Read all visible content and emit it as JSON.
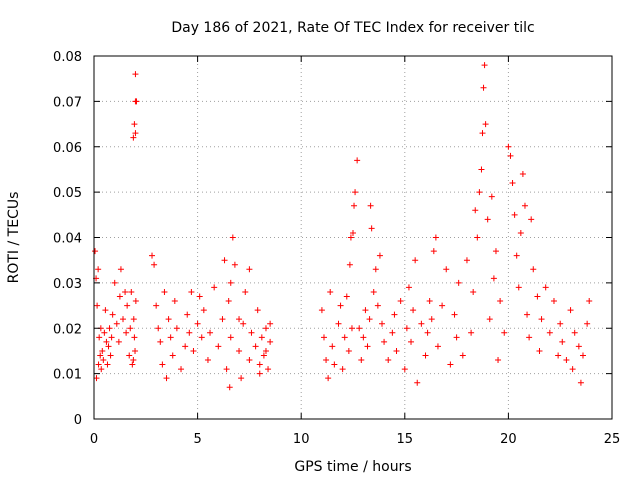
{
  "chart_data": {
    "type": "scatter",
    "title": "Day 186 of 2021, Rate Of TEC Index for receiver tilc",
    "xlabel": "GPS time / hours",
    "ylabel": "ROTI / TECUs",
    "xlim": [
      0,
      25
    ],
    "ylim": [
      0,
      0.08
    ],
    "xticks": [
      0,
      5,
      10,
      15,
      20,
      25
    ],
    "xtick_labels": [
      "0",
      "5",
      "10",
      "15",
      "20",
      "25"
    ],
    "yticks": [
      0,
      0.01,
      0.02,
      0.03,
      0.04,
      0.05,
      0.06,
      0.07,
      0.08
    ],
    "ytick_labels": [
      "0",
      "0.01",
      "0.02",
      "0.03",
      "0.04",
      "0.05",
      "0.06",
      "0.07",
      "0.08"
    ],
    "grid": true,
    "legend": "none",
    "marker": "+",
    "color": "#ff0000",
    "series": [
      {
        "x": [
          0.05,
          0.1,
          0.12,
          0.15,
          0.2,
          0.22,
          0.25,
          0.3,
          0.33,
          0.35,
          0.4,
          0.45,
          0.5,
          0.55,
          0.6,
          0.65,
          0.7,
          0.75,
          0.8,
          0.85,
          0.9,
          1.0,
          1.1,
          1.2,
          1.25,
          1.3,
          1.4,
          1.5,
          1.55,
          1.6,
          1.7,
          1.75,
          1.8,
          1.85,
          1.9,
          1.95,
          2.0,
          2.0,
          2.0,
          2.05,
          1.9,
          1.92,
          1.95,
          1.98,
          2.02,
          2.8,
          2.9,
          3.0,
          3.1,
          3.2,
          3.3,
          3.4,
          3.5,
          3.6,
          3.7,
          3.8,
          3.9,
          4.0,
          4.2,
          4.4,
          4.5,
          4.6,
          4.7,
          4.8,
          5.0,
          5.1,
          5.2,
          5.3,
          5.5,
          5.6,
          5.8,
          6.0,
          6.2,
          6.3,
          6.4,
          6.5,
          6.6,
          6.7,
          6.8,
          7.0,
          7.1,
          7.2,
          7.3,
          7.5,
          7.6,
          7.8,
          7.9,
          8.0,
          8.1,
          8.2,
          8.3,
          8.4,
          8.5,
          6.55,
          6.6,
          7.0,
          7.5,
          8.0,
          8.3,
          8.5,
          11.0,
          11.1,
          11.2,
          11.3,
          11.4,
          11.5,
          11.6,
          11.8,
          11.9,
          12.0,
          12.1,
          12.2,
          12.3,
          12.35,
          12.4,
          12.45,
          12.5,
          12.55,
          12.6,
          12.7,
          12.8,
          12.9,
          13.0,
          13.1,
          13.2,
          13.3,
          13.35,
          13.4,
          13.5,
          13.6,
          13.7,
          13.8,
          13.9,
          14.0,
          14.2,
          14.4,
          14.5,
          14.6,
          14.8,
          15.0,
          15.1,
          15.2,
          15.3,
          15.4,
          15.5,
          15.6,
          15.8,
          16.0,
          16.1,
          16.2,
          16.3,
          16.4,
          16.5,
          16.6,
          16.8,
          17.0,
          17.2,
          17.4,
          17.5,
          17.6,
          17.8,
          18.0,
          18.2,
          18.3,
          18.4,
          18.5,
          18.6,
          18.7,
          18.75,
          18.8,
          18.85,
          18.9,
          19.0,
          19.1,
          19.2,
          19.3,
          19.4,
          19.5,
          19.6,
          19.8,
          20.0,
          20.1,
          20.2,
          20.3,
          20.4,
          20.5,
          20.6,
          20.7,
          20.8,
          20.9,
          21.0,
          21.1,
          21.2,
          21.4,
          21.5,
          21.6,
          21.8,
          22.0,
          22.2,
          22.4,
          22.5,
          22.6,
          22.8,
          23.0,
          23.1,
          23.2,
          23.4,
          23.5,
          23.6,
          23.8,
          23.9
        ],
        "y": [
          0.037,
          0.031,
          0.009,
          0.025,
          0.033,
          0.012,
          0.018,
          0.014,
          0.02,
          0.011,
          0.015,
          0.013,
          0.019,
          0.024,
          0.017,
          0.012,
          0.016,
          0.02,
          0.014,
          0.018,
          0.023,
          0.03,
          0.021,
          0.017,
          0.027,
          0.033,
          0.022,
          0.028,
          0.019,
          0.025,
          0.014,
          0.02,
          0.028,
          0.012,
          0.062,
          0.065,
          0.07,
          0.063,
          0.076,
          0.07,
          0.013,
          0.022,
          0.018,
          0.015,
          0.026,
          0.036,
          0.034,
          0.025,
          0.02,
          0.017,
          0.012,
          0.028,
          0.009,
          0.022,
          0.018,
          0.014,
          0.026,
          0.02,
          0.011,
          0.016,
          0.023,
          0.019,
          0.028,
          0.015,
          0.021,
          0.027,
          0.018,
          0.024,
          0.013,
          0.019,
          0.029,
          0.016,
          0.022,
          0.035,
          0.011,
          0.026,
          0.018,
          0.04,
          0.034,
          0.015,
          0.009,
          0.021,
          0.028,
          0.013,
          0.019,
          0.016,
          0.024,
          0.012,
          0.018,
          0.014,
          0.02,
          0.011,
          0.017,
          0.007,
          0.03,
          0.022,
          0.033,
          0.01,
          0.015,
          0.021,
          0.024,
          0.018,
          0.013,
          0.009,
          0.028,
          0.016,
          0.012,
          0.021,
          0.025,
          0.011,
          0.018,
          0.027,
          0.015,
          0.034,
          0.04,
          0.02,
          0.041,
          0.047,
          0.05,
          0.057,
          0.02,
          0.013,
          0.018,
          0.024,
          0.016,
          0.022,
          0.047,
          0.042,
          0.028,
          0.033,
          0.025,
          0.036,
          0.021,
          0.017,
          0.013,
          0.019,
          0.023,
          0.015,
          0.026,
          0.011,
          0.02,
          0.029,
          0.017,
          0.024,
          0.035,
          0.008,
          0.021,
          0.014,
          0.019,
          0.026,
          0.022,
          0.037,
          0.04,
          0.016,
          0.025,
          0.033,
          0.012,
          0.023,
          0.018,
          0.03,
          0.014,
          0.035,
          0.019,
          0.028,
          0.046,
          0.04,
          0.05,
          0.055,
          0.063,
          0.073,
          0.078,
          0.065,
          0.044,
          0.022,
          0.049,
          0.031,
          0.037,
          0.013,
          0.026,
          0.019,
          0.06,
          0.058,
          0.052,
          0.045,
          0.036,
          0.029,
          0.041,
          0.054,
          0.047,
          0.023,
          0.018,
          0.044,
          0.033,
          0.027,
          0.015,
          0.022,
          0.029,
          0.019,
          0.026,
          0.014,
          0.021,
          0.017,
          0.013,
          0.024,
          0.011,
          0.019,
          0.016,
          0.008,
          0.014,
          0.021,
          0.026
        ]
      }
    ]
  }
}
